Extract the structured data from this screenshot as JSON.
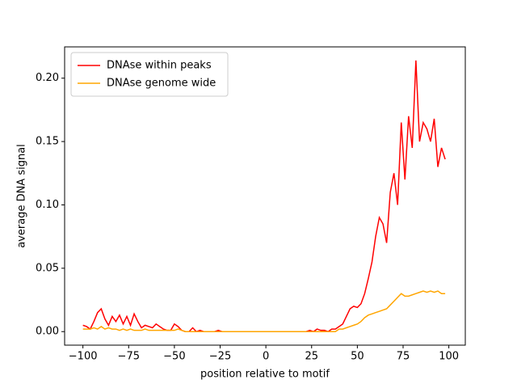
{
  "chart_data": {
    "type": "line",
    "xlabel": "position relative to motif",
    "ylabel": "average DNA signal",
    "x": [
      -100,
      -98,
      -96,
      -94,
      -92,
      -90,
      -88,
      -86,
      -84,
      -82,
      -80,
      -78,
      -76,
      -74,
      -72,
      -70,
      -68,
      -66,
      -64,
      -62,
      -60,
      -58,
      -56,
      -54,
      -52,
      -50,
      -48,
      -46,
      -44,
      -42,
      -40,
      -38,
      -36,
      -34,
      -32,
      -30,
      -28,
      -26,
      -24,
      -22,
      -20,
      -18,
      -16,
      -14,
      -12,
      -10,
      -8,
      -6,
      -4,
      -2,
      0,
      2,
      4,
      6,
      8,
      10,
      12,
      14,
      16,
      18,
      20,
      22,
      24,
      26,
      28,
      30,
      32,
      34,
      36,
      38,
      40,
      42,
      44,
      46,
      48,
      50,
      52,
      54,
      56,
      58,
      60,
      62,
      64,
      66,
      68,
      70,
      72,
      74,
      76,
      78,
      80,
      82,
      84,
      86,
      88,
      90,
      92,
      94,
      96,
      98
    ],
    "series": [
      {
        "name": "DNAse within peaks",
        "color": "#ff0000",
        "values": [
          0.005,
          0.004,
          0.002,
          0.008,
          0.015,
          0.018,
          0.01,
          0.005,
          0.012,
          0.008,
          0.013,
          0.006,
          0.012,
          0.005,
          0.014,
          0.008,
          0.003,
          0.005,
          0.004,
          0.003,
          0.006,
          0.004,
          0.002,
          0.001,
          0.001,
          0.006,
          0.004,
          0.001,
          0,
          0,
          0.003,
          0,
          0.001,
          0,
          0,
          0,
          0,
          0.001,
          0,
          0,
          0,
          0,
          0,
          0,
          0,
          0,
          0,
          0,
          0,
          0,
          0,
          0,
          0,
          0,
          0,
          0,
          0,
          0,
          0,
          0,
          0,
          0,
          0.001,
          0,
          0.002,
          0.001,
          0.001,
          0,
          0.002,
          0.002,
          0.004,
          0.006,
          0.012,
          0.018,
          0.02,
          0.019,
          0.022,
          0.03,
          0.042,
          0.055,
          0.075,
          0.09,
          0.085,
          0.07,
          0.11,
          0.125,
          0.1,
          0.165,
          0.12,
          0.17,
          0.145,
          0.214,
          0.15,
          0.165,
          0.16,
          0.15,
          0.168,
          0.13,
          0.145,
          0.136
        ]
      },
      {
        "name": "DNAse genome wide",
        "color": "#ffa500",
        "values": [
          0.002,
          0.002,
          0.002,
          0.003,
          0.002,
          0.004,
          0.002,
          0.003,
          0.002,
          0.002,
          0.001,
          0.002,
          0.001,
          0.002,
          0.001,
          0.001,
          0.001,
          0.002,
          0.001,
          0.001,
          0.001,
          0.001,
          0.001,
          0.001,
          0.001,
          0.001,
          0.002,
          0.001,
          0,
          0,
          0,
          0,
          0,
          0,
          0,
          0,
          0,
          0,
          0,
          0,
          0,
          0,
          0,
          0,
          0,
          0,
          0,
          0,
          0,
          0,
          0,
          0,
          0,
          0,
          0,
          0,
          0,
          0,
          0,
          0,
          0,
          0,
          0,
          0,
          0,
          0,
          0,
          0,
          0,
          0,
          0.002,
          0.002,
          0.003,
          0.004,
          0.005,
          0.006,
          0.008,
          0.011,
          0.013,
          0.014,
          0.015,
          0.016,
          0.017,
          0.018,
          0.021,
          0.024,
          0.027,
          0.03,
          0.028,
          0.028,
          0.029,
          0.03,
          0.031,
          0.032,
          0.031,
          0.032,
          0.031,
          0.032,
          0.03,
          0.03
        ]
      }
    ],
    "xlim": [
      -110,
      109
    ],
    "ylim": [
      -0.0107,
      0.2247
    ],
    "xticks": [
      {
        "value": -100,
        "label": "−100"
      },
      {
        "value": -75,
        "label": "−75"
      },
      {
        "value": -50,
        "label": "−50"
      },
      {
        "value": -25,
        "label": "−25"
      },
      0,
      25,
      50,
      75,
      100
    ],
    "yticks": [
      {
        "value": 0,
        "label": "0.00"
      },
      {
        "value": 0.05,
        "label": "0.05"
      },
      {
        "value": 0.1,
        "label": "0.10"
      },
      {
        "value": 0.15,
        "label": "0.15"
      },
      {
        "value": 0.2,
        "label": "0.20"
      }
    ],
    "legend": "upper left"
  }
}
